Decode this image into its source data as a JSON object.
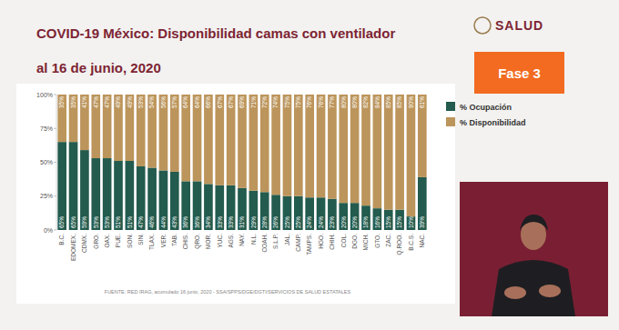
{
  "chart_data": {
    "type": "bar",
    "title": "COVID-19 México: Disponibilidad camas con ventilador",
    "subtitle": "al 16 de junio, 2020",
    "source": "FUENTE: RED IRAG, acumulado 16 junio, 2020 - SSA/SPPS/DGE/DGTI/SERVICIOS DE SALUD ESTATALES",
    "categories": [
      "B.C.",
      "EDOMEX.",
      "CDMX.",
      "GRO.",
      "OAX.",
      "PUE.",
      "SON.",
      "SIN.",
      "TLAX.",
      "VER.",
      "TAB.",
      "CHIS.",
      "QRO.",
      "MOR.",
      "YUC.",
      "AGS.",
      "NAY.",
      "N.L.",
      "COAH.",
      "S.L.P.",
      "JAL.",
      "CAMP.",
      "TAMPS.",
      "HGO.",
      "CHIH.",
      "COL.",
      "DGO.",
      "MICH.",
      "GTO.",
      "ZAC.",
      "Q.ROO.",
      "B.C.S.",
      "NAC."
    ],
    "series": [
      {
        "name": "% Ocupación",
        "color": "#235b4e",
        "values": [
          65,
          65,
          59,
          53,
          53,
          51,
          51,
          47,
          46,
          44,
          43,
          36,
          36,
          34,
          33,
          33,
          31,
          29,
          28,
          26,
          25,
          25,
          24,
          24,
          23,
          20,
          20,
          18,
          16,
          15,
          15,
          10,
          39
        ],
        "value_labels": [
          "65%",
          "65%",
          "59%",
          "53%",
          "53%",
          "51%",
          "51%",
          "47%",
          "46%",
          "44%",
          "43%",
          "36%",
          "36%",
          "34%",
          "33%",
          "33%",
          "31%",
          "29%",
          "28%",
          "26%",
          "25%",
          "25%",
          "24%",
          "24%",
          "23%",
          "20%",
          "20%",
          "18%",
          "16%",
          "15%",
          "15%",
          "10%",
          "39%"
        ]
      },
      {
        "name": "% Disponibilidad",
        "color": "#bc955c",
        "values": [
          35,
          35,
          41,
          47,
          47,
          49,
          49,
          53,
          54,
          56,
          57,
          64,
          64,
          66,
          67,
          67,
          69,
          71,
          72,
          74,
          75,
          75,
          76,
          76,
          77,
          80,
          80,
          82,
          84,
          85,
          85,
          90,
          61
        ],
        "value_labels": [
          "35%",
          "35%",
          "41%",
          "47%",
          "47%",
          "49%",
          "49%",
          "53%",
          "54%",
          "56%",
          "57%",
          "64%",
          "64%",
          "66%",
          "67%",
          "67%",
          "69%",
          "71%",
          "72%",
          "74%",
          "75%",
          "75%",
          "76%",
          "76%",
          "77%",
          "80%",
          "80%",
          "82%",
          "84%",
          "85%",
          "85%",
          "90%",
          "61%"
        ]
      }
    ],
    "ylim": [
      0,
      100
    ],
    "yticks": [
      {
        "value": 0,
        "label": "0%"
      },
      {
        "value": 25,
        "label": "25%"
      },
      {
        "value": 50,
        "label": "50%"
      },
      {
        "value": 75,
        "label": "75%"
      },
      {
        "value": 100,
        "label": "100%"
      }
    ],
    "stacked": true,
    "data_labels": true,
    "grid": false,
    "legend": "right"
  },
  "badge": "Fase 3",
  "logo": "SALUD"
}
